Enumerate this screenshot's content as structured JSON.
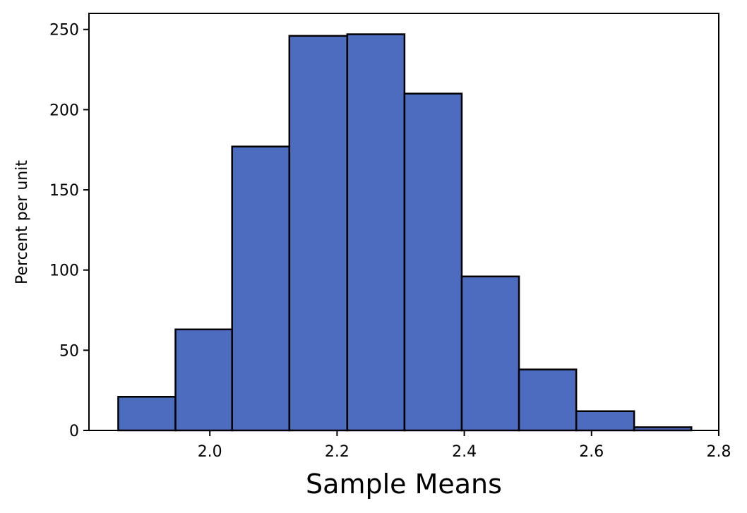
{
  "chart_data": {
    "type": "bar",
    "subtype": "histogram",
    "xlabel": "Sample Means",
    "ylabel": "Percent per unit",
    "xlim": [
      1.81,
      2.8
    ],
    "ylim": [
      0,
      260
    ],
    "bar_color": "#4c6dbf",
    "edge_color": "#000000",
    "bin_edges": [
      1.856,
      1.946,
      2.035,
      2.125,
      2.216,
      2.306,
      2.396,
      2.486,
      2.576,
      2.667,
      2.757
    ],
    "values": [
      21,
      63,
      177,
      246,
      247,
      210,
      96,
      38,
      12,
      2
    ],
    "xticks": [
      2.0,
      2.2,
      2.4,
      2.6,
      2.8
    ],
    "xtick_labels": [
      "2.0",
      "2.2",
      "2.4",
      "2.6",
      "2.8"
    ],
    "yticks": [
      0,
      50,
      100,
      150,
      200,
      250
    ],
    "ytick_labels": [
      "0",
      "50",
      "100",
      "150",
      "200",
      "250"
    ]
  }
}
